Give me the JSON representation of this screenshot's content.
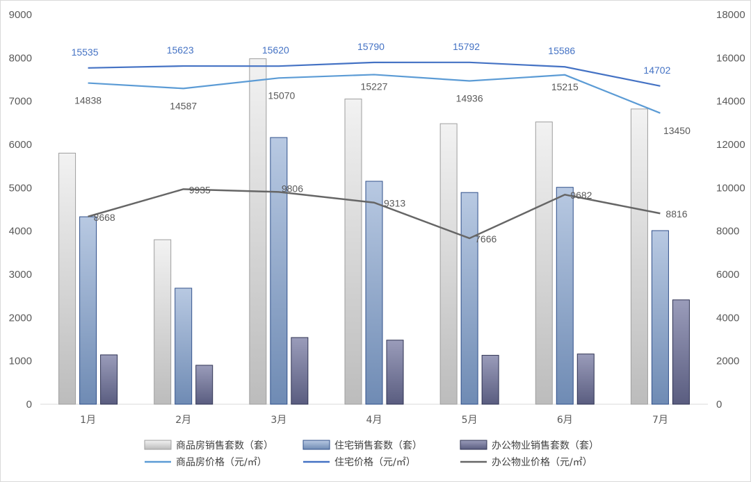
{
  "chart_data": {
    "type": "bar",
    "categories": [
      "1月",
      "2月",
      "3月",
      "4月",
      "5月",
      "6月",
      "7月"
    ],
    "y_left": {
      "min": 0,
      "max": 9000,
      "step": 1000
    },
    "y_right": {
      "min": 0,
      "max": 18000,
      "step": 2000
    },
    "grid": false,
    "legend_position": "bottom",
    "bar_series": [
      {
        "name": "商品房销售套数（套）",
        "values": [
          5800,
          3800,
          7980,
          7050,
          6480,
          6520,
          6820
        ],
        "color": "#d0d0d0"
      },
      {
        "name": "住宅销售套数（套）",
        "values": [
          4330,
          2680,
          6160,
          5150,
          4890,
          5010,
          4010
        ],
        "color": "#8fa6c8"
      },
      {
        "name": "办公物业销售套数（套）",
        "values": [
          1140,
          900,
          1540,
          1480,
          1130,
          1160,
          2410
        ],
        "color": "#6f7394"
      }
    ],
    "line_series": [
      {
        "name": "商品房价格（元/㎡）",
        "values": [
          14838,
          14587,
          15070,
          15227,
          14936,
          15215,
          13450
        ],
        "color": "#5b9bd5",
        "label_color": "#595959"
      },
      {
        "name": "住宅价格（元/㎡）",
        "values": [
          15535,
          15623,
          15620,
          15790,
          15792,
          15586,
          14702
        ],
        "color": "#4472c4",
        "label_color": "#4472c4"
      },
      {
        "name": "办公物业价格（元/㎡）",
        "values": [
          8668,
          9935,
          9806,
          9313,
          7666,
          9682,
          8816
        ],
        "color": "#666666",
        "label_color": "#595959"
      }
    ]
  }
}
